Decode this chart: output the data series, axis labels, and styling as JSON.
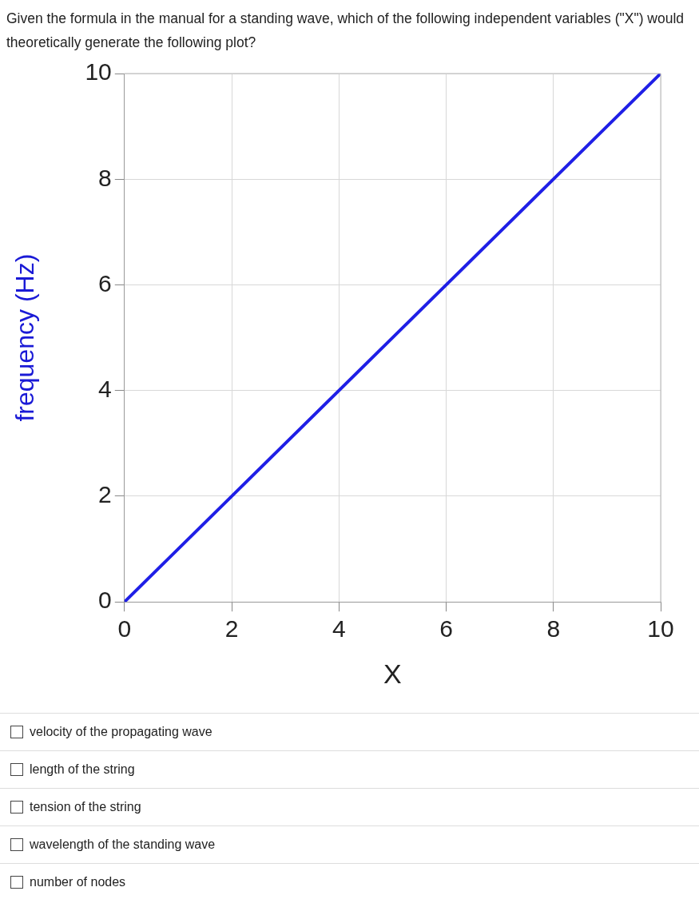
{
  "chart_data": {
    "type": "line",
    "title": "Given the formula in the manual for a standing wave, which of the following independent variables (\"X\") would theoretically generate the following plot?",
    "xlabel": "X",
    "ylabel": "frequency (Hz)",
    "series": [
      {
        "x": [
          0,
          10
        ],
        "values": [
          0,
          10
        ],
        "color": "#1f1fe6"
      }
    ],
    "xlim": [
      0,
      10
    ],
    "xticks": [
      0,
      2,
      4,
      6,
      8,
      10
    ],
    "ylim": [
      0,
      10
    ],
    "yticks": [
      0,
      2,
      4,
      6,
      8,
      10
    ],
    "grid": true,
    "legend": false,
    "marker": "none",
    "line_style": "solid",
    "annotations": [
      "velocity of the propagating wave",
      "length of the string",
      "tension of the string",
      "wavelength of the standing wave",
      "number of nodes"
    ]
  }
}
